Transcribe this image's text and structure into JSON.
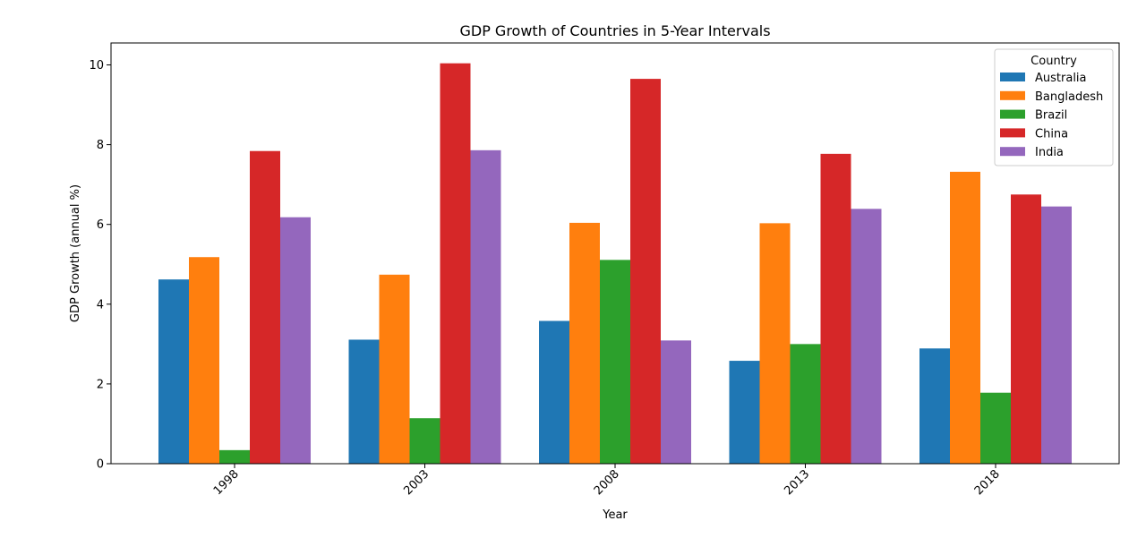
{
  "chart_data": {
    "type": "bar",
    "title": "GDP Growth of Countries in 5-Year Intervals",
    "xlabel": "Year",
    "ylabel": "GDP Growth (annual %)",
    "categories": [
      "1998",
      "2003",
      "2008",
      "2013",
      "2018"
    ],
    "ylim": [
      0,
      10.55
    ],
    "yticks": [
      0,
      2,
      4,
      6,
      8,
      10
    ],
    "grid": false,
    "legend": {
      "title": "Country",
      "placement": "top-right"
    },
    "series": [
      {
        "name": "Australia",
        "color": "#1f77b4",
        "values": [
          4.62,
          3.11,
          3.58,
          2.58,
          2.89
        ]
      },
      {
        "name": "Bangladesh",
        "color": "#ff7f0e",
        "values": [
          5.18,
          4.74,
          6.04,
          6.03,
          7.32
        ]
      },
      {
        "name": "Brazil",
        "color": "#2ca02c",
        "values": [
          0.34,
          1.14,
          5.11,
          3.0,
          1.78
        ]
      },
      {
        "name": "China",
        "color": "#d62728",
        "values": [
          7.84,
          10.04,
          9.65,
          7.77,
          6.75
        ]
      },
      {
        "name": "India",
        "color": "#9467bd",
        "values": [
          6.18,
          7.86,
          3.09,
          6.39,
          6.45
        ]
      }
    ]
  }
}
